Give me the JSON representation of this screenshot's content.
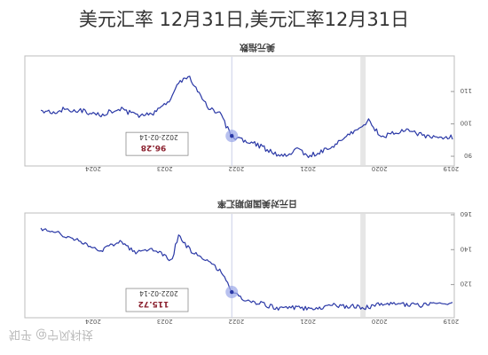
{
  "page": {
    "title": "美元汇率 12月31日,美元汇率12月31日"
  },
  "watermark": "知乎 @宁风科技",
  "colors": {
    "line": "#2a38a6",
    "highlight": "#9aa6e8",
    "tooltip_value": "#8a1f2d",
    "shade": "#e6e6e6"
  },
  "chart_data": [
    {
      "type": "line",
      "title": "美元指数",
      "x_axis_labels": [
        "2024",
        "2023",
        "2022",
        "2021",
        "2020",
        "2019"
      ],
      "x_reversed": true,
      "y_ticks": [
        "110",
        "100",
        "90"
      ],
      "y_tick_values": [
        110,
        100,
        90
      ],
      "ylim": [
        87,
        121
      ],
      "y_side": "right",
      "shaded_period": "2020",
      "tooltip": {
        "date": "2022-02-14",
        "value": "96.28"
      },
      "series": [
        {
          "x": [
            "2024-09",
            "2024-06",
            "2024-03",
            "2023-12",
            "2023-09",
            "2023-06",
            "2023-03",
            "2022-12",
            "2022-11",
            "2022-09",
            "2022-06",
            "2022-04",
            "2022-02",
            "2021-12",
            "2021-09",
            "2021-06",
            "2021-03",
            "2021-01",
            "2020-09",
            "2020-06",
            "2020-03",
            "2020-01",
            "2019-09",
            "2019-06",
            "2019-03",
            "2019-01"
          ],
          "values": [
            103.5,
            104.5,
            104,
            102.5,
            105,
            102.5,
            103.5,
            108,
            113,
            114,
            105,
            103,
            96.28,
            95,
            93,
            90,
            92,
            90,
            93,
            97,
            101,
            96,
            98,
            96.5,
            95.5,
            96
          ]
        }
      ]
    },
    {
      "type": "line",
      "title": "日元对美国即期汇率",
      "x_axis_labels": [
        "2024",
        "2023",
        "2022",
        "2021",
        "2020",
        "2019"
      ],
      "x_reversed": true,
      "y_ticks": [
        "160",
        "140",
        "120"
      ],
      "y_tick_values": [
        160,
        140,
        120
      ],
      "ylim": [
        101,
        161
      ],
      "y_side": "right",
      "shaded_period": "2020",
      "tooltip": {
        "date": "2022-02-14",
        "value": "115.72"
      },
      "series": [
        {
          "x": [
            "2024-09",
            "2024-06",
            "2024-03",
            "2023-12",
            "2023-09",
            "2023-06",
            "2023-03",
            "2022-12",
            "2022-11",
            "2022-09",
            "2022-06",
            "2022-04",
            "2022-02",
            "2021-12",
            "2021-09",
            "2021-06",
            "2021-03",
            "2021-01",
            "2020-09",
            "2020-06",
            "2020-03",
            "2020-01",
            "2019-09",
            "2019-06",
            "2019-03",
            "2019-01"
          ],
          "values": [
            152,
            148,
            144,
            139,
            145,
            138,
            140,
            134,
            148,
            140,
            134,
            128,
            115.72,
            112,
            109,
            106,
            107,
            106,
            108,
            107.5,
            107,
            109,
            108.5,
            108,
            109,
            109
          ]
        }
      ]
    }
  ]
}
